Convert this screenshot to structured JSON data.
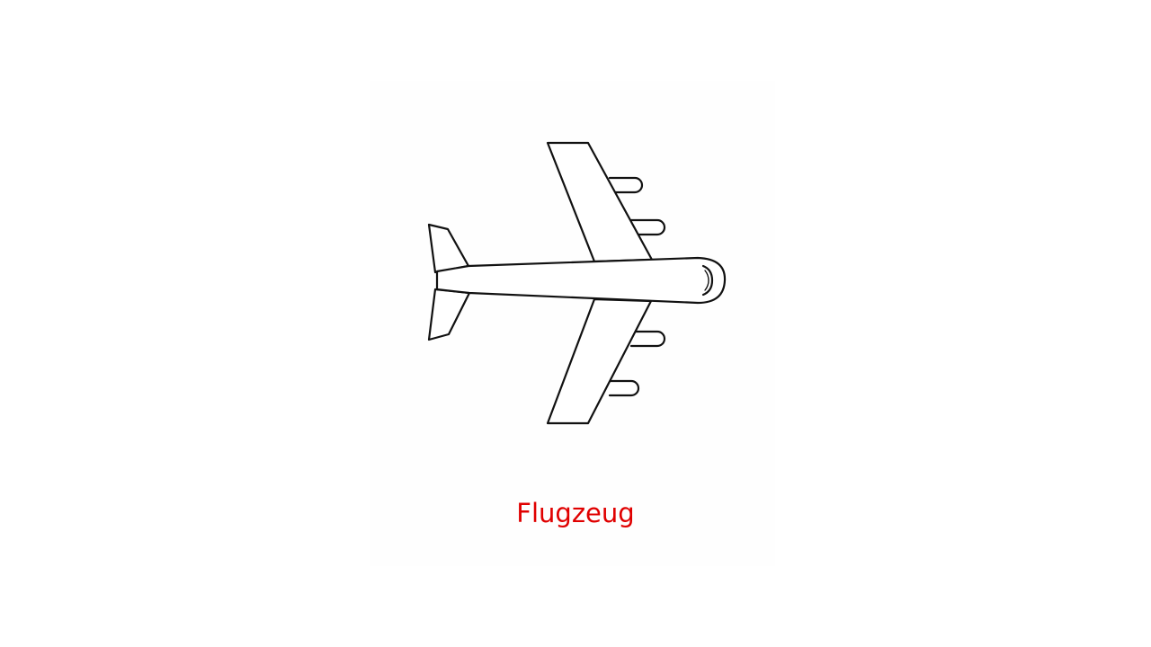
{
  "caption": {
    "text": "Flugzeug",
    "color": "#e00000"
  },
  "illustration": {
    "icon": "airplane-icon",
    "stroke_color": "#111111",
    "fill_color": "#ffffff"
  }
}
